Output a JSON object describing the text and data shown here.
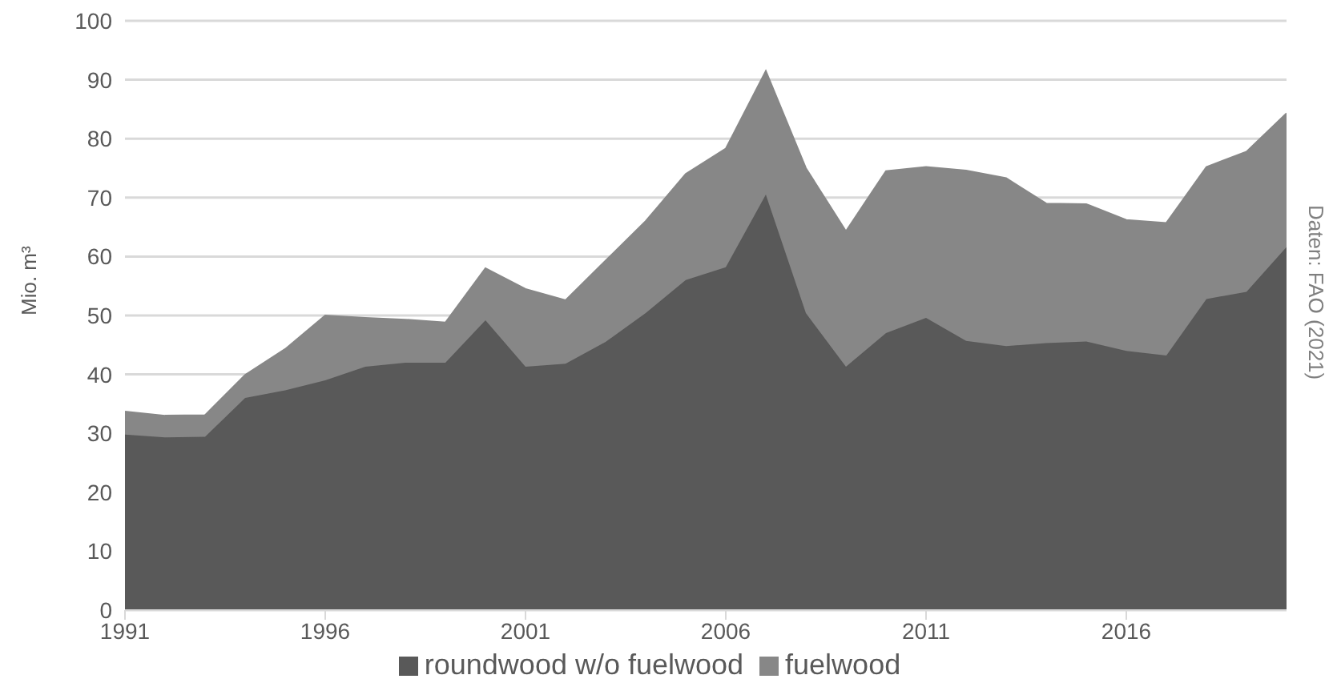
{
  "chart_data": {
    "type": "area",
    "stacked": true,
    "ylabel": "Mio. m³",
    "annotations": [
      "Daten: FAO (2021)"
    ],
    "x": [
      1991,
      1992,
      1993,
      1994,
      1995,
      1996,
      1997,
      1998,
      1999,
      2000,
      2001,
      2002,
      2003,
      2004,
      2005,
      2006,
      2007,
      2008,
      2009,
      2010,
      2011,
      2012,
      2013,
      2014,
      2015,
      2016,
      2017,
      2018,
      2019,
      2020
    ],
    "series": [
      {
        "name": "roundwood w/o fuelwood",
        "color": "#595959",
        "values": [
          29.8,
          29.3,
          29.4,
          36.0,
          37.3,
          39.0,
          41.3,
          42.0,
          42.0,
          49.2,
          41.3,
          41.8,
          45.5,
          50.4,
          56.0,
          58.2,
          70.5,
          50.4,
          41.3,
          47.0,
          49.6,
          45.7,
          44.8,
          45.3,
          45.6,
          44.0,
          43.2,
          52.8,
          54.0,
          61.6
        ]
      },
      {
        "name": "fuelwood",
        "color": "#878787",
        "values": [
          3.9,
          3.7,
          3.7,
          3.9,
          7.0,
          11.0,
          8.3,
          7.3,
          6.8,
          8.8,
          13.2,
          10.8,
          13.8,
          15.6,
          18.0,
          20.1,
          21.0,
          24.6,
          23.0,
          27.5,
          25.6,
          28.9,
          28.5,
          23.7,
          23.3,
          22.2,
          22.5,
          22.4,
          23.8,
          22.7
        ]
      }
    ],
    "xlim": [
      1991,
      2020
    ],
    "xticks": [
      1991,
      1996,
      2001,
      2006,
      2011,
      2016
    ],
    "ylim": [
      0,
      100
    ],
    "yticks": [
      0,
      10,
      20,
      30,
      40,
      50,
      60,
      70,
      80,
      90,
      100
    ],
    "grid": "y",
    "legend": "bottom"
  }
}
